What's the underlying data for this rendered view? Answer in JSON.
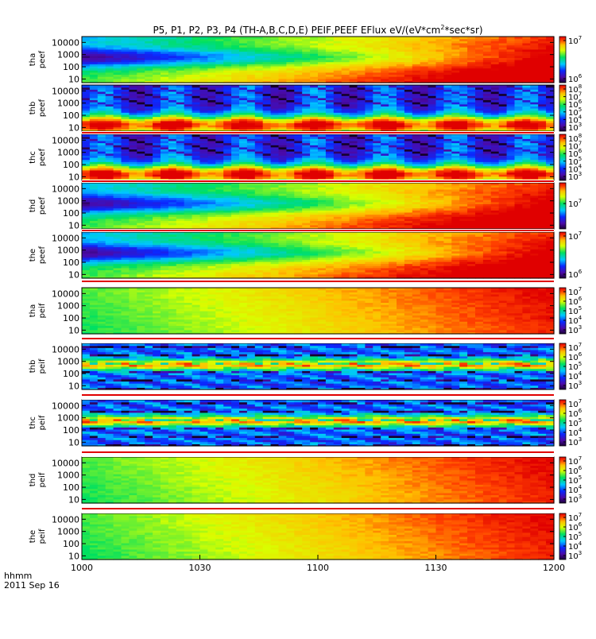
{
  "chart_data": {
    "type": "heatmap",
    "title": "P5, P1, P2, P3, P4 (TH-A,B,C,D,E) PEIF,PEEF EFlux eV/(eV*cm",
    "title_sup": "2",
    "title_end": "*sec*sr)",
    "x_axis": {
      "ticks": [
        "1000",
        "1030",
        "1100",
        "1130",
        "1200"
      ],
      "range": [
        "10:00",
        "12:00"
      ],
      "label_line1": "hhmm",
      "label_line2": "2011 Sep 16"
    },
    "colorscale": "rainbow (black-purple-blue-cyan-green-yellow-red)",
    "y_scale": "log",
    "panels": [
      {
        "label1": "tha",
        "label2": "peef",
        "species": "electron",
        "yticks": [
          "10000",
          "1000",
          "100",
          "10"
        ],
        "ylim": [
          5,
          30000
        ],
        "cbar_ticks": [
          "10^7",
          "10^6"
        ]
      },
      {
        "label1": "thb",
        "label2": "peef",
        "species": "electron",
        "yticks": [
          "10000",
          "1000",
          "100",
          "10"
        ],
        "ylim": [
          5,
          30000
        ],
        "cbar_ticks": [
          "10^8",
          "10^7",
          "10^6",
          "10^5",
          "10^4",
          "10^3"
        ]
      },
      {
        "label1": "thc",
        "label2": "peef",
        "species": "electron",
        "yticks": [
          "10000",
          "1000",
          "100",
          "10"
        ],
        "ylim": [
          5,
          30000
        ],
        "cbar_ticks": [
          "10^8",
          "10^7",
          "10^6",
          "10^5",
          "10^4",
          "10^3"
        ]
      },
      {
        "label1": "thd",
        "label2": "peef",
        "species": "electron",
        "yticks": [
          "10000",
          "1000",
          "100",
          "10"
        ],
        "ylim": [
          5,
          30000
        ],
        "cbar_ticks": [
          "10^7"
        ]
      },
      {
        "label1": "the",
        "label2": "peef",
        "species": "electron",
        "yticks": [
          "10000",
          "1000",
          "100",
          "10"
        ],
        "ylim": [
          5,
          30000
        ],
        "cbar_ticks": [
          "10^7",
          "10^6"
        ]
      },
      {
        "label1": "tha",
        "label2": "peif",
        "species": "ion",
        "yticks": [
          "10000",
          "1000",
          "100",
          "10"
        ],
        "ylim": [
          5,
          30000
        ],
        "cbar_ticks": [
          "10^7",
          "10^6",
          "10^5",
          "10^4",
          "10^3"
        ]
      },
      {
        "label1": "thb",
        "label2": "peif",
        "species": "ion",
        "yticks": [
          "10000",
          "1000",
          "100",
          "10"
        ],
        "ylim": [
          5,
          30000
        ],
        "cbar_ticks": [
          "10^7",
          "10^6",
          "10^5",
          "10^4",
          "10^3"
        ]
      },
      {
        "label1": "thc",
        "label2": "peif",
        "species": "ion",
        "yticks": [
          "10000",
          "1000",
          "100",
          "10"
        ],
        "ylim": [
          5,
          30000
        ],
        "cbar_ticks": [
          "10^7",
          "10^6",
          "10^5",
          "10^4",
          "10^3"
        ]
      },
      {
        "label1": "thd",
        "label2": "peif",
        "species": "ion",
        "yticks": [
          "10000",
          "1000",
          "100",
          "10"
        ],
        "ylim": [
          5,
          30000
        ],
        "cbar_ticks": [
          "10^7",
          "10^6",
          "10^5",
          "10^4",
          "10^3"
        ]
      },
      {
        "label1": "the",
        "label2": "peif",
        "species": "ion",
        "yticks": [
          "10000",
          "1000",
          "100",
          "10"
        ],
        "ylim": [
          5,
          30000
        ],
        "cbar_ticks": [
          "10^7",
          "10^6",
          "10^5",
          "10^4",
          "10^3"
        ]
      }
    ]
  }
}
